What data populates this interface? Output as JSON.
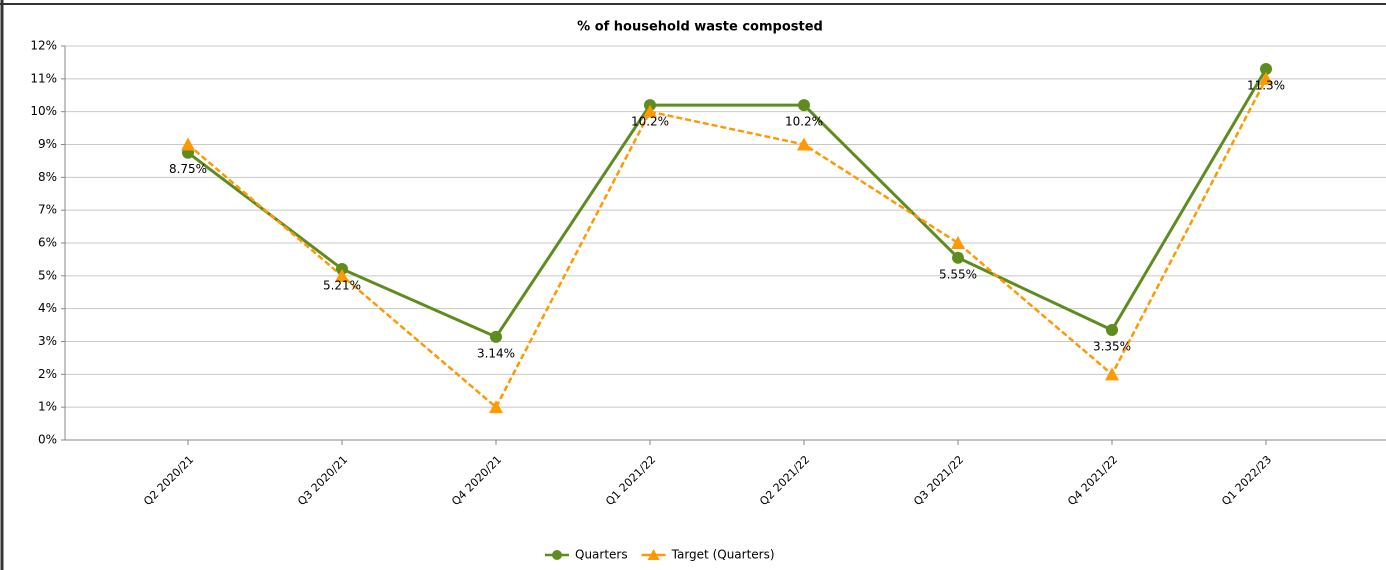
{
  "chart_data": {
    "type": "line",
    "title": "% of household waste composted",
    "categories": [
      "Q2 2020/21",
      "Q3 2020/21",
      "Q4 2020/21",
      "Q1 2021/22",
      "Q2 2021/22",
      "Q3 2021/22",
      "Q4 2021/22",
      "Q1 2022/23"
    ],
    "series": [
      {
        "name": "Quarters",
        "color": "#5f8c1f",
        "values": [
          8.75,
          5.21,
          3.14,
          10.2,
          10.2,
          5.55,
          3.35,
          11.3
        ],
        "value_labels": [
          "8.75%",
          "5.21%",
          "3.14%",
          "10.2%",
          "10.2%",
          "5.55%",
          "3.35%",
          "11.3%"
        ]
      },
      {
        "name": "Target (Quarters)",
        "color": "#ff9900",
        "values": [
          9,
          5,
          1,
          10,
          9,
          6,
          2,
          11
        ]
      }
    ],
    "ylim": [
      0,
      12
    ],
    "yticks": [
      {
        "value": 0,
        "label": "0%"
      },
      {
        "value": 1,
        "label": "1%"
      },
      {
        "value": 2,
        "label": "2%"
      },
      {
        "value": 3,
        "label": "3%"
      },
      {
        "value": 4,
        "label": "4%"
      },
      {
        "value": 5,
        "label": "5%"
      },
      {
        "value": 6,
        "label": "6%"
      },
      {
        "value": 7,
        "label": "7%"
      },
      {
        "value": 8,
        "label": "8%"
      },
      {
        "value": 9,
        "label": "9%"
      },
      {
        "value": 10,
        "label": "10%"
      },
      {
        "value": 11,
        "label": "11%"
      },
      {
        "value": 12,
        "label": "12%"
      }
    ],
    "grid": true,
    "legend": "bottom"
  }
}
